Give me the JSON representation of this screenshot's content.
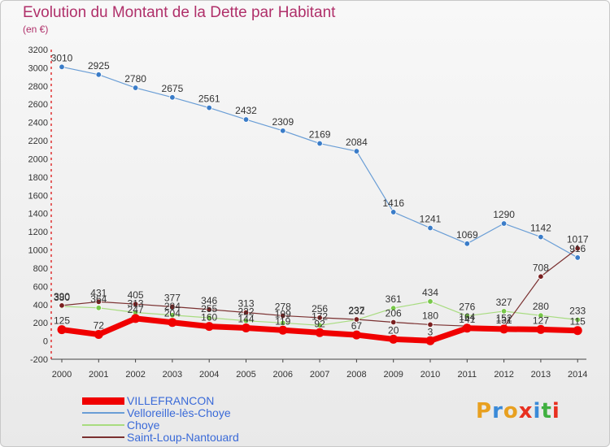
{
  "title": "Evolution du Montant de la Dette par Habitant",
  "subtitle": "(en €)",
  "logo": {
    "text": "Proxiti",
    "colors": [
      "#e8a020",
      "#3a8ad8",
      "#e8a020",
      "#e83020",
      "#3a8ad8",
      "#40b040",
      "#e83020"
    ]
  },
  "chart_data": {
    "type": "line",
    "title": "Evolution du Montant de la Dette par Habitant",
    "ylabel": "(en €)",
    "x": [
      "2000",
      "2001",
      "2002",
      "2003",
      "2004",
      "2005",
      "2006",
      "2007",
      "2008",
      "2009",
      "2010",
      "2011",
      "2012",
      "2013",
      "2014"
    ],
    "ylim": [
      -200,
      3200
    ],
    "yticks": [
      -200,
      0,
      200,
      400,
      600,
      800,
      1000,
      1200,
      1400,
      1600,
      1800,
      2000,
      2200,
      2400,
      2600,
      2800,
      3000,
      3200
    ],
    "grid": false,
    "legend_position": "bottom",
    "series": [
      {
        "name": "Velloreille-lès-Choye",
        "color": "#6a9ed6",
        "point_color": "#3a7cc8",
        "line_width": 1.2,
        "values": [
          3010,
          2925,
          2780,
          2675,
          2561,
          2432,
          2309,
          2169,
          2084,
          1416,
          1241,
          1069,
          1290,
          1142,
          916
        ]
      },
      {
        "name": "Choye",
        "color": "#a8dc80",
        "point_color": "#78c84a",
        "line_width": 1.2,
        "values": [
          380,
          364,
          313,
          284,
          255,
          222,
          199,
          172,
          232,
          361,
          434,
          276,
          327,
          280,
          233
        ]
      },
      {
        "name": "Saint-Loup-Nantouard",
        "color": "#7a3030",
        "point_color": "#7a2020",
        "line_width": 1.2,
        "values": [
          390,
          431,
          405,
          377,
          346,
          313,
          278,
          256,
          237,
          206,
          180,
          164,
          152,
          708,
          1017
        ]
      },
      {
        "name": "VILLEFRANCON",
        "color": "#f00000",
        "point_color": "#f00000",
        "line_width": 7,
        "values": [
          125,
          72,
          247,
          204,
          160,
          144,
          119,
          92,
          67,
          20,
          3,
          141,
          131,
          127,
          115
        ]
      }
    ],
    "labels": [
      {
        "text": "3010",
        "x": 0,
        "y": 3010,
        "color": "#333333"
      },
      {
        "text": "2925",
        "x": 1,
        "y": 2925,
        "color": "#333333"
      },
      {
        "text": "2780",
        "x": 2,
        "y": 2780,
        "color": "#333333"
      },
      {
        "text": "2675",
        "x": 3,
        "y": 2675,
        "color": "#333333"
      },
      {
        "text": "2561",
        "x": 4,
        "y": 2561,
        "color": "#333333"
      },
      {
        "text": "2432",
        "x": 5,
        "y": 2432,
        "color": "#333333"
      },
      {
        "text": "2309",
        "x": 6,
        "y": 2309,
        "color": "#333333"
      },
      {
        "text": "2169",
        "x": 7,
        "y": 2169,
        "color": "#333333"
      },
      {
        "text": "2084",
        "x": 8,
        "y": 2084,
        "color": "#333333"
      },
      {
        "text": "1416",
        "x": 9,
        "y": 1416,
        "color": "#333333"
      },
      {
        "text": "1241",
        "x": 10,
        "y": 1241,
        "color": "#333333"
      },
      {
        "text": "1069",
        "x": 11,
        "y": 1069,
        "color": "#333333"
      },
      {
        "text": "1290",
        "x": 12,
        "y": 1290,
        "color": "#333333"
      },
      {
        "text": "1142",
        "x": 13,
        "y": 1142,
        "color": "#333333"
      },
      {
        "text": "1017",
        "x": 14,
        "y": 1017,
        "color": "#333333"
      },
      {
        "text": "916",
        "x": 14,
        "y": 916,
        "color": "#333333"
      },
      {
        "text": "390",
        "x": 0,
        "y": 390,
        "color": "#333333"
      },
      {
        "text": "380",
        "x": 0,
        "y": 380,
        "color": "#333333"
      },
      {
        "text": "125",
        "x": 0,
        "y": 125,
        "color": "#333333"
      },
      {
        "text": "431",
        "x": 1,
        "y": 431,
        "color": "#333333"
      },
      {
        "text": "364",
        "x": 1,
        "y": 364,
        "color": "#333333"
      },
      {
        "text": "72",
        "x": 1,
        "y": 72,
        "color": "#333333"
      },
      {
        "text": "405",
        "x": 2,
        "y": 405,
        "color": "#333333"
      },
      {
        "text": "313",
        "x": 2,
        "y": 313,
        "color": "#333333"
      },
      {
        "text": "247",
        "x": 2,
        "y": 247,
        "color": "#333333"
      },
      {
        "text": "377",
        "x": 3,
        "y": 377,
        "color": "#333333"
      },
      {
        "text": "284",
        "x": 3,
        "y": 284,
        "color": "#333333"
      },
      {
        "text": "204",
        "x": 3,
        "y": 204,
        "color": "#333333"
      },
      {
        "text": "346",
        "x": 4,
        "y": 346,
        "color": "#333333"
      },
      {
        "text": "255",
        "x": 4,
        "y": 255,
        "color": "#333333"
      },
      {
        "text": "160",
        "x": 4,
        "y": 160,
        "color": "#333333"
      },
      {
        "text": "313",
        "x": 5,
        "y": 313,
        "color": "#333333"
      },
      {
        "text": "222",
        "x": 5,
        "y": 222,
        "color": "#333333"
      },
      {
        "text": "144",
        "x": 5,
        "y": 144,
        "color": "#333333"
      },
      {
        "text": "278",
        "x": 6,
        "y": 278,
        "color": "#333333"
      },
      {
        "text": "199",
        "x": 6,
        "y": 199,
        "color": "#333333"
      },
      {
        "text": "119",
        "x": 6,
        "y": 119,
        "color": "#333333"
      },
      {
        "text": "256",
        "x": 7,
        "y": 256,
        "color": "#333333"
      },
      {
        "text": "172",
        "x": 7,
        "y": 172,
        "color": "#333333"
      },
      {
        "text": "92",
        "x": 7,
        "y": 92,
        "color": "#333333"
      },
      {
        "text": "237",
        "x": 8,
        "y": 237,
        "color": "#333333"
      },
      {
        "text": "232",
        "x": 8,
        "y": 232,
        "color": "#333333"
      },
      {
        "text": "67",
        "x": 8,
        "y": 67,
        "color": "#333333"
      },
      {
        "text": "361",
        "x": 9,
        "y": 361,
        "color": "#333333"
      },
      {
        "text": "206",
        "x": 9,
        "y": 206,
        "color": "#333333"
      },
      {
        "text": "20",
        "x": 9,
        "y": 20,
        "color": "#333333"
      },
      {
        "text": "434",
        "x": 10,
        "y": 434,
        "color": "#333333"
      },
      {
        "text": "180",
        "x": 10,
        "y": 180,
        "color": "#333333"
      },
      {
        "text": "3",
        "x": 10,
        "y": 3,
        "color": "#333333"
      },
      {
        "text": "276",
        "x": 11,
        "y": 276,
        "color": "#333333"
      },
      {
        "text": "164",
        "x": 11,
        "y": 164,
        "color": "#333333"
      },
      {
        "text": "141",
        "x": 11,
        "y": 141,
        "color": "#333333"
      },
      {
        "text": "327",
        "x": 12,
        "y": 327,
        "color": "#333333"
      },
      {
        "text": "152",
        "x": 12,
        "y": 152,
        "color": "#333333"
      },
      {
        "text": "131",
        "x": 12,
        "y": 131,
        "color": "#333333"
      },
      {
        "text": "708",
        "x": 13,
        "y": 708,
        "color": "#333333"
      },
      {
        "text": "280",
        "x": 13,
        "y": 280,
        "color": "#333333"
      },
      {
        "text": "127",
        "x": 13,
        "y": 127,
        "color": "#333333"
      },
      {
        "text": "233",
        "x": 14,
        "y": 233,
        "color": "#333333"
      },
      {
        "text": "115",
        "x": 14,
        "y": 115,
        "color": "#333333"
      }
    ]
  }
}
